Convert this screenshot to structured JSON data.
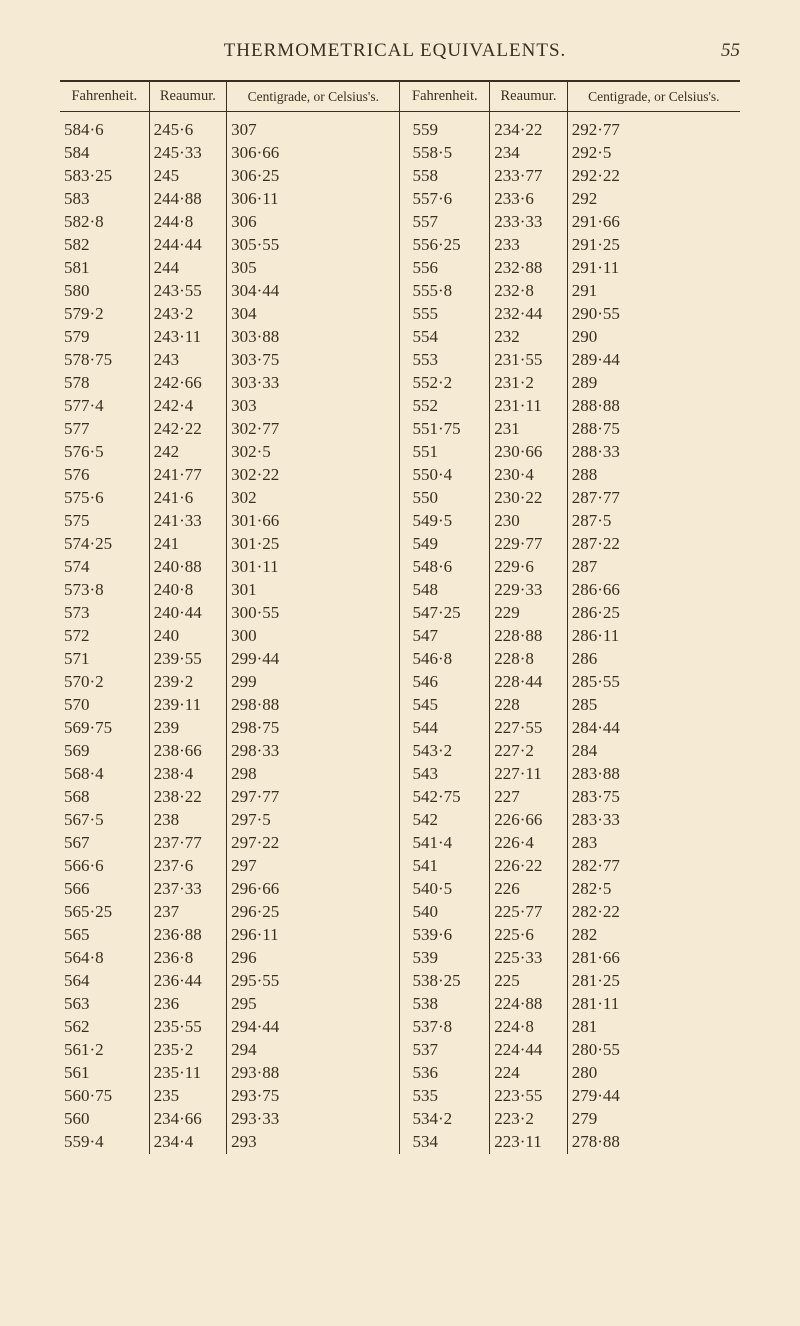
{
  "header": {
    "title": "THERMOMETRICAL EQUIVALENTS.",
    "page_number": "55"
  },
  "table": {
    "columns": [
      "Fahrenheit.",
      "Reaumur.",
      "Centigrade, or Celsius's.",
      "Fahrenheit.",
      "Reaumur.",
      "Centigrade, or Celsius's."
    ],
    "rows": [
      [
        "584·6",
        "245·6",
        "307",
        "559",
        "234·22",
        "292·77"
      ],
      [
        "584",
        "245·33",
        "306·66",
        "558·5",
        "234",
        "292·5"
      ],
      [
        "583·25",
        "245",
        "306·25",
        "558",
        "233·77",
        "292·22"
      ],
      [
        "583",
        "244·88",
        "306·11",
        "557·6",
        "233·6",
        "292"
      ],
      [
        "582·8",
        "244·8",
        "306",
        "557",
        "233·33",
        "291·66"
      ],
      [
        "582",
        "244·44",
        "305·55",
        "556·25",
        "233",
        "291·25"
      ],
      [
        "581",
        "244",
        "305",
        "556",
        "232·88",
        "291·11"
      ],
      [
        "580",
        "243·55",
        "304·44",
        "555·8",
        "232·8",
        "291"
      ],
      [
        "579·2",
        "243·2",
        "304",
        "555",
        "232·44",
        "290·55"
      ],
      [
        "579",
        "243·11",
        "303·88",
        "554",
        "232",
        "290"
      ],
      [
        "578·75",
        "243",
        "303·75",
        "553",
        "231·55",
        "289·44"
      ],
      [
        "578",
        "242·66",
        "303·33",
        "552·2",
        "231·2",
        "289"
      ],
      [
        "577·4",
        "242·4",
        "303",
        "552",
        "231·11",
        "288·88"
      ],
      [
        "577",
        "242·22",
        "302·77",
        "551·75",
        "231",
        "288·75"
      ],
      [
        "576·5",
        "242",
        "302·5",
        "551",
        "230·66",
        "288·33"
      ],
      [
        "576",
        "241·77",
        "302·22",
        "550·4",
        "230·4",
        "288"
      ],
      [
        "575·6",
        "241·6",
        "302",
        "550",
        "230·22",
        "287·77"
      ],
      [
        "575",
        "241·33",
        "301·66",
        "549·5",
        "230",
        "287·5"
      ],
      [
        "574·25",
        "241",
        "301·25",
        "549",
        "229·77",
        "287·22"
      ],
      [
        "574",
        "240·88",
        "301·11",
        "548·6",
        "229·6",
        "287"
      ],
      [
        "573·8",
        "240·8",
        "301",
        "548",
        "229·33",
        "286·66"
      ],
      [
        "573",
        "240·44",
        "300·55",
        "547·25",
        "229",
        "286·25"
      ],
      [
        "572",
        "240",
        "300",
        "547",
        "228·88",
        "286·11"
      ],
      [
        "571",
        "239·55",
        "299·44",
        "546·8",
        "228·8",
        "286"
      ],
      [
        "570·2",
        "239·2",
        "299",
        "546",
        "228·44",
        "285·55"
      ],
      [
        "570",
        "239·11",
        "298·88",
        "545",
        "228",
        "285"
      ],
      [
        "569·75",
        "239",
        "298·75",
        "544",
        "227·55",
        "284·44"
      ],
      [
        "569",
        "238·66",
        "298·33",
        "543·2",
        "227·2",
        "284"
      ],
      [
        "568·4",
        "238·4",
        "298",
        "543",
        "227·11",
        "283·88"
      ],
      [
        "568",
        "238·22",
        "297·77",
        "542·75",
        "227",
        "283·75"
      ],
      [
        "567·5",
        "238",
        "297·5",
        "542",
        "226·66",
        "283·33"
      ],
      [
        "567",
        "237·77",
        "297·22",
        "541·4",
        "226·4",
        "283"
      ],
      [
        "566·6",
        "237·6",
        "297",
        "541",
        "226·22",
        "282·77"
      ],
      [
        "566",
        "237·33",
        "296·66",
        "540·5",
        "226",
        "282·5"
      ],
      [
        "565·25",
        "237",
        "296·25",
        "540",
        "225·77",
        "282·22"
      ],
      [
        "565",
        "236·88",
        "296·11",
        "539·6",
        "225·6",
        "282"
      ],
      [
        "564·8",
        "236·8",
        "296",
        "539",
        "225·33",
        "281·66"
      ],
      [
        "564",
        "236·44",
        "295·55",
        "538·25",
        "225",
        "281·25"
      ],
      [
        "563",
        "236",
        "295",
        "538",
        "224·88",
        "281·11"
      ],
      [
        "562",
        "235·55",
        "294·44",
        "537·8",
        "224·8",
        "281"
      ],
      [
        "561·2",
        "235·2",
        "294",
        "537",
        "224·44",
        "280·55"
      ],
      [
        "561",
        "235·11",
        "293·88",
        "536",
        "224",
        "280"
      ],
      [
        "560·75",
        "235",
        "293·75",
        "535",
        "223·55",
        "279·44"
      ],
      [
        "560",
        "234·66",
        "293·33",
        "534·2",
        "223·2",
        "279"
      ],
      [
        "559·4",
        "234·4",
        "293",
        "534",
        "223·11",
        "278·88"
      ]
    ]
  }
}
